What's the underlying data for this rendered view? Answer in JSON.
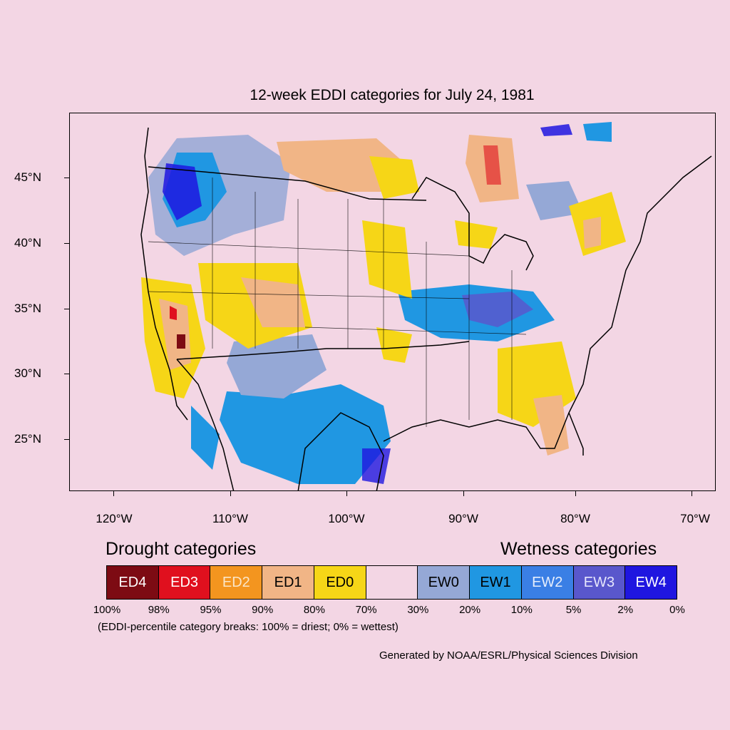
{
  "title": "12-week EDDI categories for July 24, 1981",
  "y_labels": [
    "45°N",
    "40°N",
    "35°N",
    "30°N",
    "25°N"
  ],
  "x_labels": [
    "120°W",
    "110°W",
    "100°W",
    "90°W",
    "80°W",
    "70°W"
  ],
  "drought_heading": "Drought categories",
  "wetness_heading": "Wetness categories",
  "legend": [
    {
      "label": "ED4",
      "color": "#7d0b13",
      "text_color": "#ffffff"
    },
    {
      "label": "ED3",
      "color": "#e0101e",
      "text_color": "#ffffff"
    },
    {
      "label": "ED2",
      "color": "#f3951f",
      "text_color": "#fbe6c8"
    },
    {
      "label": "ED1",
      "color": "#f1b586",
      "text_color": "#000000"
    },
    {
      "label": "ED0",
      "color": "#f6d617",
      "text_color": "#000000"
    },
    {
      "label": "",
      "color": "#f3d6e4",
      "text_color": "#000000"
    },
    {
      "label": "EW0",
      "color": "#95a8d6",
      "text_color": "#000000"
    },
    {
      "label": "EW1",
      "color": "#2097e2",
      "text_color": "#000000"
    },
    {
      "label": "EW2",
      "color": "#3a7fe5",
      "text_color": "#e6eefc"
    },
    {
      "label": "EW3",
      "color": "#5957cc",
      "text_color": "#e6e6fc"
    },
    {
      "label": "EW4",
      "color": "#1f16e0",
      "text_color": "#ffffff"
    }
  ],
  "breaks": [
    "100%",
    "98%",
    "95%",
    "90%",
    "80%",
    "70%",
    "30%",
    "20%",
    "10%",
    "5%",
    "2%",
    "0%"
  ],
  "note": "(EDDI-percentile category breaks: 100% = driest; 0% = wettest)",
  "credit": "Generated by NOAA/ESRL/Physical Sciences Division",
  "icons": {
    "map": "conus-eddi-map"
  }
}
